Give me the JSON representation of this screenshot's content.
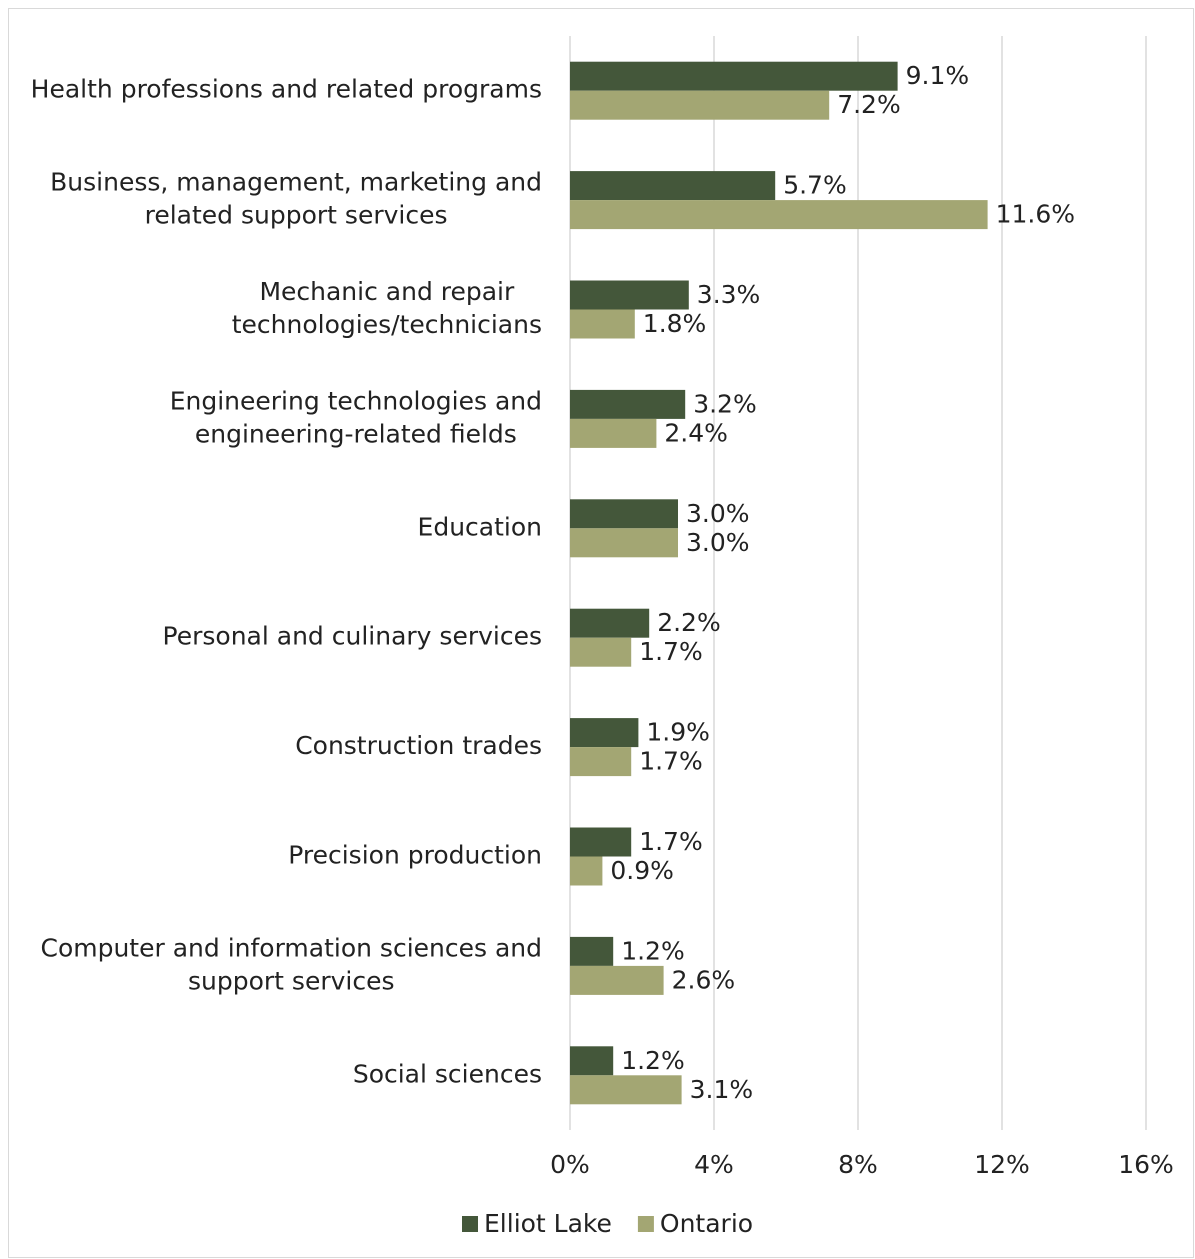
{
  "chart_data": {
    "type": "hbar",
    "categories": [
      "Health professions and related programs",
      "Business, management, marketing and related support services",
      "Mechanic and repair technologies/technicians",
      "Engineering technologies and engineering-related fields",
      "Education",
      "Personal and culinary services",
      "Construction trades",
      "Precision production",
      "Computer and information sciences and support services",
      "Social sciences"
    ],
    "series": [
      {
        "name": "Elliot Lake",
        "color": "#44573a",
        "values": [
          9.1,
          5.7,
          3.3,
          3.2,
          3.0,
          2.2,
          1.9,
          1.7,
          1.2,
          1.2
        ],
        "value_labels": [
          "9.1%",
          "5.7%",
          "3.3%",
          "3.2%",
          "3.0%",
          "2.2%",
          "1.9%",
          "1.7%",
          "1.2%",
          "1.2%"
        ]
      },
      {
        "name": "Ontario",
        "color": "#a3a673",
        "values": [
          7.2,
          11.6,
          1.8,
          2.4,
          3.0,
          1.7,
          1.7,
          0.9,
          2.6,
          3.1
        ],
        "value_labels": [
          "7.2%",
          "11.6%",
          "1.8%",
          "2.4%",
          "3.0%",
          "1.7%",
          "1.7%",
          "0.9%",
          "2.6%",
          "3.1%"
        ]
      }
    ],
    "xlim": [
      0,
      16
    ],
    "xticks": [
      {
        "value": 0,
        "label": "0%"
      },
      {
        "value": 4,
        "label": "4%"
      },
      {
        "value": 8,
        "label": "8%"
      },
      {
        "value": 12,
        "label": "12%"
      },
      {
        "value": 16,
        "label": "16%"
      }
    ],
    "grid": true,
    "legend": "bottom"
  }
}
